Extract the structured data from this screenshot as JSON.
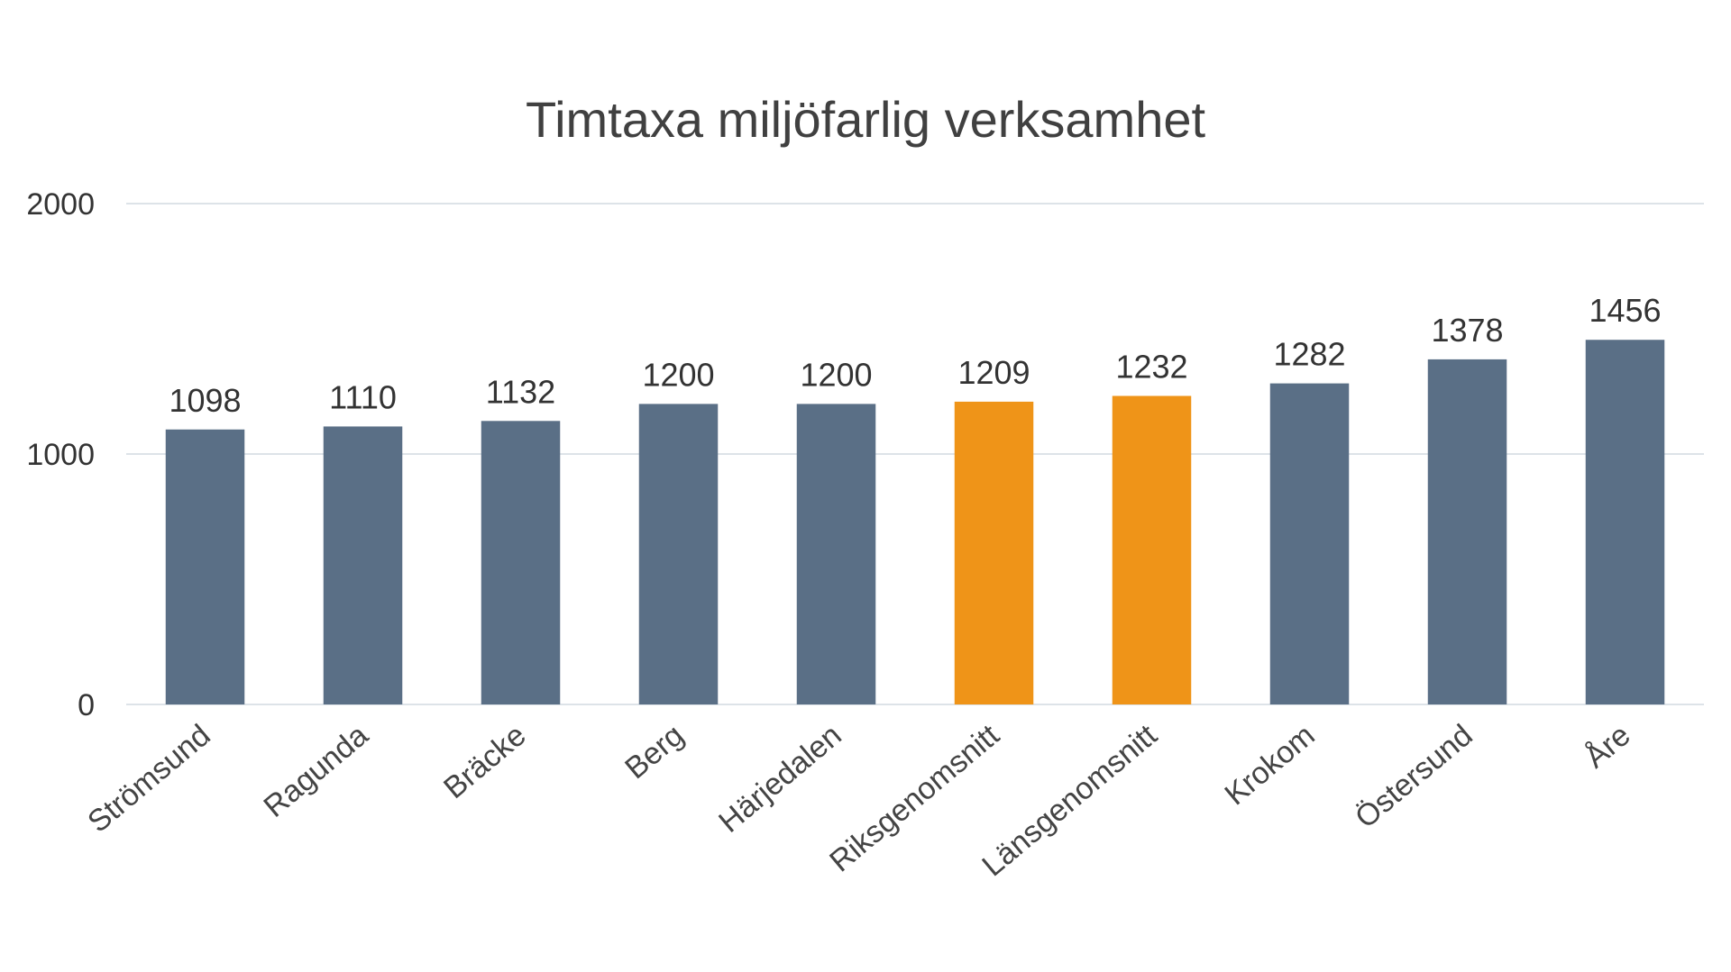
{
  "chart_data": {
    "type": "bar",
    "title": "Timtaxa miljöfarlig verksamhet",
    "xlabel": "",
    "ylabel": "",
    "ylim": [
      0,
      2000
    ],
    "yticks": [
      0,
      1000,
      2000
    ],
    "grid": true,
    "categories": [
      "Strömsund",
      "Ragunda",
      "Bräcke",
      "Berg",
      "Härjedalen",
      "Riksgenomsnitt",
      "Länsgenomsnitt",
      "Krokom",
      "Östersund",
      "Åre"
    ],
    "values": [
      1098,
      1110,
      1132,
      1200,
      1200,
      1209,
      1232,
      1282,
      1378,
      1456
    ],
    "bar_colors": [
      "#5a6f86",
      "#5a6f86",
      "#5a6f86",
      "#5a6f86",
      "#5a6f86",
      "#ef9418",
      "#ef9418",
      "#5a6f86",
      "#5a6f86",
      "#5a6f86"
    ]
  }
}
